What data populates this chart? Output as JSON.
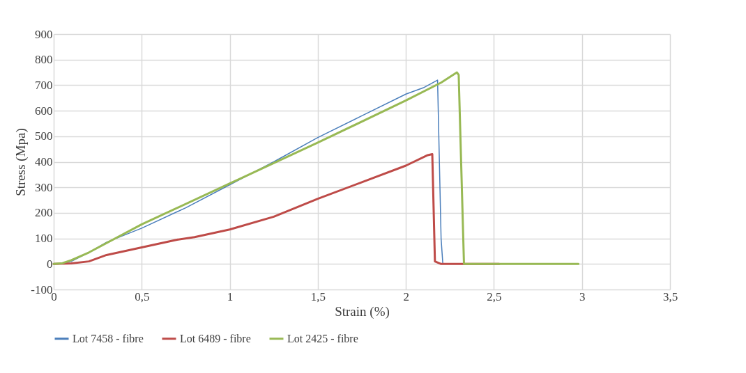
{
  "chart_data": {
    "type": "line",
    "xlabel": "Strain (%)",
    "ylabel": "Stress (Mpa)",
    "xlim": [
      0,
      3.5
    ],
    "xticks": [
      0,
      {
        "value": 0.5,
        "label": "0,5"
      },
      1,
      {
        "value": 1.5,
        "label": "1,5"
      },
      2,
      {
        "value": 2.5,
        "label": "2,5"
      },
      3,
      {
        "value": 3.5,
        "label": "3,5"
      }
    ],
    "ylim": [
      -100,
      900
    ],
    "yticks": [
      -100,
      0,
      100,
      200,
      300,
      400,
      500,
      600,
      700,
      800,
      900
    ],
    "grid": true,
    "legend": "bottom",
    "marker": "none",
    "line_style": "solid",
    "series": [
      {
        "name": "Lot 7458 - fibre",
        "color": "#4a7ebb",
        "x": [
          0,
          0.05,
          0.1,
          0.2,
          0.3,
          0.5,
          0.75,
          1,
          1.25,
          1.5,
          1.75,
          2,
          2.1,
          2.18,
          2.2,
          2.21,
          2.25
        ],
        "values": [
          0,
          2,
          10,
          45,
          85,
          140,
          220,
          310,
          400,
          495,
          580,
          665,
          690,
          720,
          100,
          0,
          0
        ]
      },
      {
        "name": "Lot 6489 - fibre",
        "color": "#be4b48",
        "x": [
          0,
          0.1,
          0.2,
          0.3,
          0.5,
          0.7,
          0.8,
          1,
          1.25,
          1.5,
          1.75,
          2,
          2.12,
          2.15,
          2.165,
          2.2,
          2.53
        ],
        "values": [
          0,
          2,
          10,
          35,
          65,
          95,
          105,
          135,
          185,
          255,
          320,
          385,
          425,
          430,
          10,
          0,
          0
        ]
      },
      {
        "name": "Lot 2425 - fibre",
        "color": "#98b954",
        "x": [
          0,
          0.05,
          0.1,
          0.2,
          0.5,
          1,
          1.5,
          2,
          2.2,
          2.29,
          2.3,
          2.33,
          2.98
        ],
        "values": [
          0,
          3,
          15,
          45,
          155,
          315,
          475,
          640,
          710,
          750,
          740,
          0,
          0
        ]
      }
    ]
  }
}
